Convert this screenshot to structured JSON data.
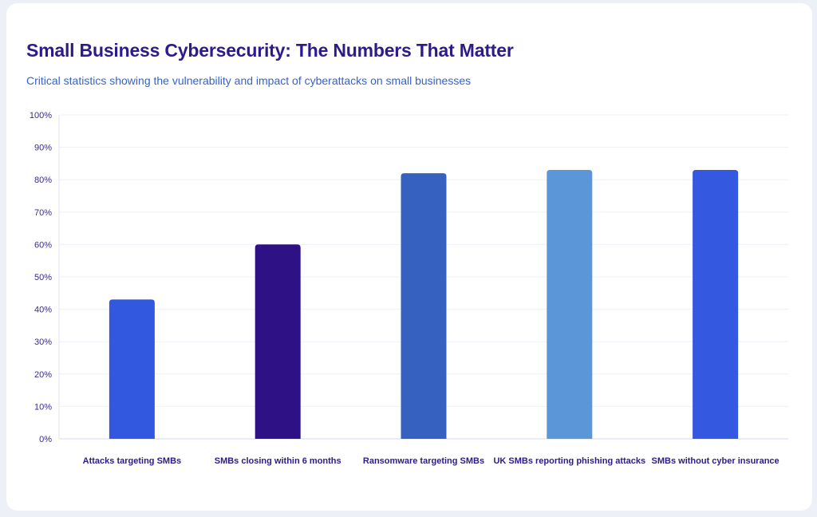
{
  "title": "Small Business Cybersecurity: The Numbers That Matter",
  "subtitle": "Critical statistics showing the vulnerability and impact of cyberattacks on small businesses",
  "chart_data": {
    "type": "bar",
    "title": "Small Business Cybersecurity: The Numbers That Matter",
    "subtitle": "Critical statistics showing the vulnerability and impact of cyberattacks on small businesses",
    "categories": [
      "Attacks targeting SMBs",
      "SMBs closing within 6 months",
      "Ransomware targeting SMBs",
      "UK SMBs reporting phishing attacks",
      "SMBs without cyber insurance"
    ],
    "values": [
      43,
      60,
      82,
      83,
      83
    ],
    "colors": [
      "#3358e0",
      "#2e1185",
      "#3661c0",
      "#5b97d8",
      "#3458e0"
    ],
    "xlabel": "",
    "ylabel": "",
    "ylim": [
      0,
      100
    ],
    "yticks": [
      "0%",
      "10%",
      "20%",
      "30%",
      "40%",
      "50%",
      "60%",
      "70%",
      "80%",
      "90%",
      "100%"
    ],
    "grid": true,
    "legend": "none"
  }
}
